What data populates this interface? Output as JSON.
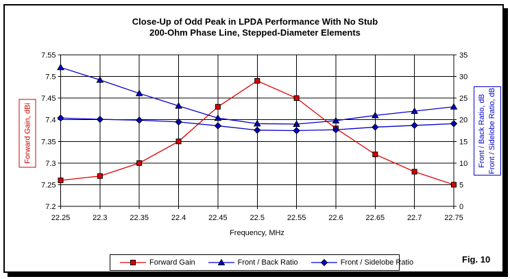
{
  "figure": {
    "label": "Fig. 10"
  },
  "colors": {
    "frame_border": "#000000",
    "grid": "#000000",
    "gain_red": "#dd0000",
    "ratio_blue": "#0000cc",
    "marker_edge": "#000000",
    "background": "#ffffff"
  },
  "chart_data": {
    "type": "line",
    "title": "Close-Up of Odd Peak in LPDA Performance With No Stub",
    "subtitle": "200-Ohm Phase Line, Stepped-Diameter Elements",
    "xlabel": "Frequency, MHz",
    "ylabel_left": "Forward Gain, dBi",
    "ylabel_right_line1": "Front / Back Ratio, dB",
    "ylabel_right_line2": "Front / Sidelobe Ratio, dB",
    "x": [
      22.25,
      22.3,
      22.35,
      22.4,
      22.45,
      22.5,
      22.55,
      22.6,
      22.65,
      22.7,
      22.75
    ],
    "x_tick_labels": [
      "22.25",
      "22.3",
      "22.35",
      "22.4",
      "22.45",
      "22.5",
      "22.55",
      "22.6",
      "22.65",
      "22.7",
      "22.75"
    ],
    "ylim_left": [
      7.2,
      7.55
    ],
    "yticks_left": [
      7.2,
      7.25,
      7.3,
      7.35,
      7.4,
      7.45,
      7.5,
      7.55
    ],
    "ytick_labels_left": [
      "7.2",
      "7.25",
      "7.3",
      "7.35",
      "7.4",
      "7.45",
      "7.5",
      "7.55"
    ],
    "ylim_right": [
      0,
      35
    ],
    "yticks_right": [
      0,
      5,
      10,
      15,
      20,
      25,
      30,
      35
    ],
    "ytick_labels_right": [
      "0",
      "5",
      "10",
      "15",
      "20",
      "25",
      "30",
      "35"
    ],
    "grid": true,
    "legend_position": "bottom",
    "series": [
      {
        "name": "Forward Gain",
        "axis": "left",
        "marker": "square",
        "color": "#dd0000",
        "values": [
          7.26,
          7.27,
          7.3,
          7.35,
          7.43,
          7.49,
          7.45,
          7.38,
          7.32,
          7.28,
          7.25
        ]
      },
      {
        "name": "Front / Back Ratio",
        "axis": "right",
        "marker": "triangle",
        "color": "#0000cc",
        "values": [
          32.1,
          29.2,
          26.1,
          23.2,
          20.4,
          19.1,
          19.0,
          19.8,
          21.0,
          22.0,
          23.0
        ]
      },
      {
        "name": "Front / Sidelobe Ratio",
        "axis": "right",
        "marker": "diamond",
        "color": "#0000cc",
        "values": [
          20.4,
          20.1,
          19.9,
          19.5,
          18.6,
          17.6,
          17.5,
          17.7,
          18.3,
          18.7,
          19.1
        ]
      }
    ]
  }
}
